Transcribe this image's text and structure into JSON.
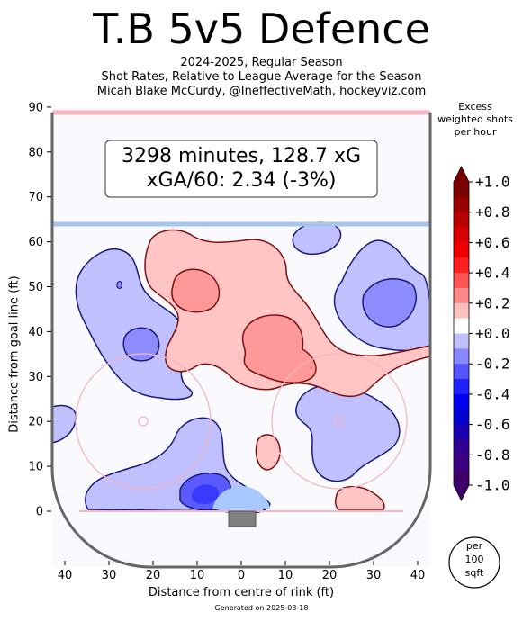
{
  "title": "T.B 5v5 Defence",
  "subtitle_lines": [
    "2024-2025, Regular Season",
    "Shot Rates, Relative to League Average for the Season",
    "Micah Blake McCurdy, @IneffectiveMath, hockeyviz.com"
  ],
  "annotation": {
    "line1": "3298 minutes, 128.7 xG",
    "line2": "xGA/60: 2.34 (-3%)"
  },
  "footer": "Generated on 2025-03-18",
  "colorbar": {
    "title_lines": [
      "Excess",
      "weighted shots",
      "per hour"
    ],
    "ticks": [
      "+1.0",
      "+0.8",
      "+0.6",
      "+0.4",
      "+0.2",
      "+0.0",
      "-0.2",
      "-0.4",
      "-0.6",
      "-0.8",
      "-1.0"
    ],
    "levels_high_to_low": [
      "#7a0000",
      "#990000",
      "#b80000",
      "#d80000",
      "#f00000",
      "#ff2020",
      "#ff5555",
      "#ff8888",
      "#ffc0c0",
      "#ffffff",
      "#c0c0ff",
      "#8888ff",
      "#5555ff",
      "#2020ff",
      "#0000f0",
      "#0000d0",
      "#1a00b0",
      "#300090",
      "#3b0080",
      "#40006a"
    ]
  },
  "unit_badge": [
    "per",
    "100",
    "sqft"
  ],
  "colors": {
    "positive": "#ff0000",
    "negative": "#0000ff",
    "boards": "#666666",
    "blue_line": "#a8c4ea",
    "goal_line": "#f4b6c0",
    "goal_crease": "#a8c8ff",
    "net": "#808080"
  },
  "chart_data": {
    "type": "heatmap",
    "title": "T.B 5v5 Defence",
    "xlabel": "Distance from centre of rink (ft)",
    "ylabel": "Distance from goal line (ft)",
    "xlim": [
      -42.5,
      42.5
    ],
    "ylim": [
      -11,
      90
    ],
    "x_tick_labels": [
      "40",
      "30",
      "20",
      "10",
      "0",
      "10",
      "20",
      "30",
      "40"
    ],
    "x_tick_values": [
      -40,
      -30,
      -20,
      -10,
      0,
      10,
      20,
      30,
      40
    ],
    "y_ticks": [
      0,
      10,
      20,
      30,
      40,
      50,
      60,
      70,
      80,
      90
    ],
    "color_range": [
      -1.0,
      1.0
    ],
    "regions": [
      {
        "label": "slot and high slot",
        "sign": "positive",
        "level": 0.1
      },
      {
        "label": "left high slot pocket",
        "sign": "positive",
        "level": 0.2
      },
      {
        "label": "central slot pocket",
        "sign": "positive",
        "level": 0.2
      },
      {
        "label": "right point lane",
        "sign": "positive",
        "level": 0.1
      },
      {
        "label": "right low circle",
        "sign": "positive",
        "level": 0.1
      },
      {
        "label": "left side of zone",
        "sign": "negative",
        "level": -0.1
      },
      {
        "label": "left circle pocket",
        "sign": "negative",
        "level": -0.2
      },
      {
        "label": "right top of zone",
        "sign": "negative",
        "level": -0.1
      },
      {
        "label": "right point pocket",
        "sign": "negative",
        "level": -0.2
      },
      {
        "label": "right circle",
        "sign": "negative",
        "level": -0.1
      },
      {
        "label": "low left and crease",
        "sign": "negative",
        "level": -0.1
      },
      {
        "label": "crease",
        "sign": "negative",
        "level": -0.3
      }
    ]
  }
}
